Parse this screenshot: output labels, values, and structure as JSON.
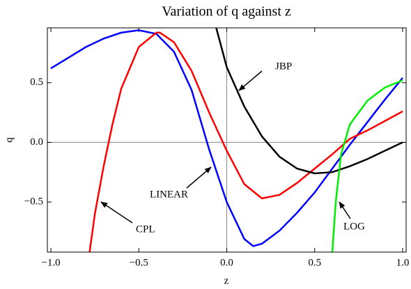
{
  "chart_data": {
    "type": "line",
    "title": "Variation of q against z",
    "x_label": "z",
    "y_label": "q",
    "xlim": [
      -1.02,
      1.02
    ],
    "ylim": [
      -0.92,
      0.96
    ],
    "xticks": [
      {
        "value": -1,
        "label": "−1.0"
      },
      {
        "value": -0.5,
        "label": "−0.5"
      },
      {
        "value": 0,
        "label": "0.0"
      },
      {
        "value": 0.5,
        "label": "0.5"
      },
      {
        "value": 1,
        "label": "1.0"
      }
    ],
    "yticks": [
      {
        "value": -0.5,
        "label": "−0.5"
      },
      {
        "value": 0,
        "label": "0.0"
      },
      {
        "value": 0.5,
        "label": "0.5"
      }
    ],
    "series": [
      {
        "name": "LINEAR",
        "color": "#0000ff",
        "x": [
          -1,
          -0.9,
          -0.8,
          -0.7,
          -0.6,
          -0.5,
          -0.4,
          -0.3,
          -0.2,
          -0.1,
          0,
          0.1,
          0.15,
          0.2,
          0.3,
          0.4,
          0.5,
          0.6,
          0.7,
          0.8,
          0.9,
          1.0
        ],
        "values": [
          0.62,
          0.71,
          0.8,
          0.87,
          0.92,
          0.94,
          0.91,
          0.76,
          0.44,
          -0.06,
          -0.5,
          -0.81,
          -0.87,
          -0.85,
          -0.74,
          -0.59,
          -0.42,
          -0.22,
          -0.02,
          0.17,
          0.36,
          0.54
        ]
      },
      {
        "name": "CPL",
        "color": "#ff0000",
        "x": [
          -0.78,
          -0.75,
          -0.7,
          -0.65,
          -0.6,
          -0.5,
          -0.4,
          -0.38,
          -0.3,
          -0.2,
          -0.1,
          0,
          0.1,
          0.2,
          0.3,
          0.4,
          0.5,
          0.6,
          0.7,
          0.8,
          0.9,
          1.0
        ],
        "values": [
          -0.92,
          -0.6,
          -0.2,
          0.15,
          0.45,
          0.8,
          0.92,
          0.92,
          0.84,
          0.6,
          0.25,
          -0.07,
          -0.35,
          -0.47,
          -0.44,
          -0.34,
          -0.22,
          -0.1,
          0.03,
          0.1,
          0.18,
          0.26
        ]
      },
      {
        "name": "JBP",
        "color": "#000000",
        "x": [
          -0.06,
          0,
          0.1,
          0.2,
          0.3,
          0.4,
          0.5,
          0.6,
          0.7,
          0.8,
          0.9,
          1.0
        ],
        "values": [
          0.96,
          0.63,
          0.3,
          0.05,
          -0.12,
          -0.22,
          -0.26,
          -0.25,
          -0.2,
          -0.14,
          -0.07,
          0.0
        ]
      },
      {
        "name": "LOG",
        "color": "#00ee00",
        "x": [
          0.6,
          0.62,
          0.65,
          0.7,
          0.8,
          0.9,
          1.0
        ],
        "values": [
          -0.92,
          -0.5,
          -0.1,
          0.15,
          0.35,
          0.46,
          0.52
        ]
      }
    ]
  }
}
